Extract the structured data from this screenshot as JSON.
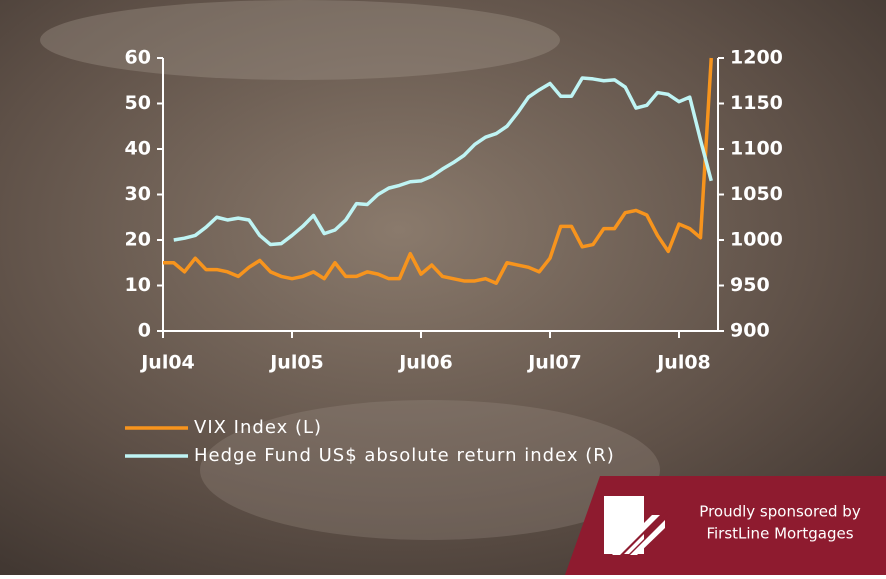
{
  "chart_data": {
    "type": "line",
    "categories": [
      "Jul04",
      null,
      null,
      null,
      null,
      null,
      null,
      null,
      null,
      null,
      null,
      null,
      "Jul05",
      null,
      null,
      null,
      null,
      null,
      null,
      null,
      null,
      null,
      null,
      null,
      "Jul06",
      null,
      null,
      null,
      null,
      null,
      null,
      null,
      null,
      null,
      null,
      null,
      "Jul07",
      null,
      null,
      null,
      null,
      null,
      null,
      null,
      null,
      null,
      null,
      null,
      "Jul08",
      null,
      null,
      null
    ],
    "series": [
      {
        "name": "VIX Index (L)",
        "color": "#f7941d",
        "values": [
          15,
          15,
          13,
          16,
          13.5,
          13.5,
          13,
          12,
          14,
          15.5,
          13,
          12,
          11.5,
          12,
          13,
          11.5,
          15,
          12,
          12,
          13,
          12.5,
          11.5,
          11.5,
          17,
          12.5,
          14.5,
          12,
          11.5,
          11,
          11,
          11.5,
          10.5,
          15,
          14.5,
          14,
          13,
          16,
          23,
          23,
          18.5,
          19,
          22.5,
          22.5,
          26,
          26.5,
          25.5,
          21,
          17.5,
          23.5,
          22.5,
          20.5,
          60
        ]
      },
      {
        "name": "Hedge Fund US$ absolute return index (R)",
        "color": "#bff4f4",
        "axis": "y2",
        "values": [
          null,
          1000,
          1002,
          1005,
          1014,
          1025,
          1022,
          1024,
          1022,
          1005,
          995,
          996,
          1005,
          1015,
          1027,
          1007,
          1011,
          1022,
          1040,
          1039,
          1050,
          1057,
          1060,
          1064,
          1065,
          1070,
          1078,
          1085,
          1093,
          1105,
          1113,
          1117,
          1125,
          1140,
          1157,
          1165,
          1172,
          1158,
          1158,
          1178,
          1177,
          1175,
          1176,
          1168,
          1145,
          1148,
          1162,
          1160,
          1152,
          1157,
          1110,
          1065
        ]
      }
    ],
    "ylim": [
      0,
      60
    ],
    "yticks": [
      0,
      10,
      20,
      30,
      40,
      50,
      60
    ],
    "y2lim": [
      900,
      1200
    ],
    "y2ticks": [
      900,
      950,
      1000,
      1050,
      1100,
      1150,
      1200
    ]
  },
  "sponsor": {
    "line1": "Proudly sponsored by",
    "line2": "FirstLine Mortgages"
  }
}
